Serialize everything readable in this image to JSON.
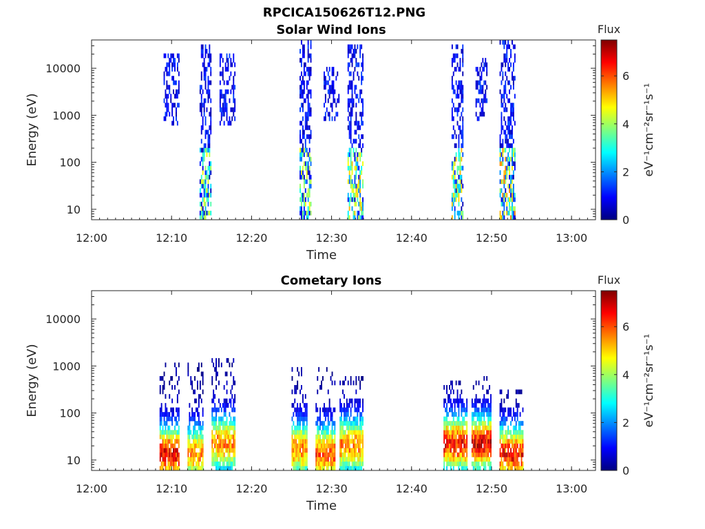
{
  "figure_title": "RPCICA150626T12.PNG",
  "colorbar_stops": [
    "#00007f",
    "#0000ff",
    "#007fff",
    "#00ffff",
    "#7fff7f",
    "#ffff00",
    "#ff7f00",
    "#ff0000",
    "#7f0000"
  ],
  "chart_data": [
    {
      "type": "heatmap",
      "title": "Solar Wind Ions",
      "xlabel": "Time",
      "ylabel": "Energy (eV)",
      "x_ticks": [
        "12:00",
        "12:10",
        "12:20",
        "12:30",
        "12:40",
        "12:50",
        "13:00"
      ],
      "x_range": [
        "12:00",
        "13:03"
      ],
      "y_scale": "log",
      "y_ticks": [
        "10",
        "100",
        "1000",
        "10000"
      ],
      "y_range": [
        6,
        40000
      ],
      "colorbar": {
        "label": "Flux",
        "unit": "eV⁻¹cm⁻²sr⁻¹s⁻¹",
        "ticks": [
          "0",
          "2",
          "4",
          "6"
        ],
        "range": [
          0,
          7.5
        ]
      },
      "bursts": [
        {
          "t_start": "12:09",
          "t_end": "12:11",
          "e_min": 600,
          "e_max": 18000,
          "flux": [
            1.5,
            2.5
          ]
        },
        {
          "t_start": "12:13:30",
          "t_end": "12:15",
          "e_min": 6,
          "e_max": 30000,
          "flux": [
            0.3,
            3.5
          ]
        },
        {
          "t_start": "12:16",
          "t_end": "12:18",
          "e_min": 600,
          "e_max": 18000,
          "flux": [
            1.5,
            2.5
          ]
        },
        {
          "t_start": "12:26",
          "t_end": "12:27:30",
          "e_min": 6,
          "e_max": 35000,
          "flux": [
            0.3,
            3.5
          ]
        },
        {
          "t_start": "12:29",
          "t_end": "12:31",
          "e_min": 700,
          "e_max": 9000,
          "flux": [
            1.5,
            2.5
          ]
        },
        {
          "t_start": "12:32",
          "t_end": "12:34",
          "e_min": 6,
          "e_max": 30000,
          "flux": [
            0.3,
            4
          ]
        },
        {
          "t_start": "12:45",
          "t_end": "12:46:30",
          "e_min": 6,
          "e_max": 30000,
          "flux": [
            0.3,
            4
          ]
        },
        {
          "t_start": "12:48",
          "t_end": "12:49:30",
          "e_min": 700,
          "e_max": 15000,
          "flux": [
            1.5,
            2.5
          ]
        },
        {
          "t_start": "12:51",
          "t_end": "12:53",
          "e_min": 6,
          "e_max": 35000,
          "flux": [
            0.3,
            4.5
          ]
        }
      ]
    },
    {
      "type": "heatmap",
      "title": "Cometary Ions",
      "xlabel": "Time",
      "ylabel": "Energy (eV)",
      "x_ticks": [
        "12:00",
        "12:10",
        "12:20",
        "12:30",
        "12:40",
        "12:50",
        "13:00"
      ],
      "x_range": [
        "12:00",
        "13:03"
      ],
      "y_scale": "log",
      "y_ticks": [
        "10",
        "100",
        "1000",
        "10000"
      ],
      "y_range": [
        6,
        40000
      ],
      "colorbar": {
        "label": "Flux",
        "unit": "eV⁻¹cm⁻²sr⁻¹s⁻¹",
        "ticks": [
          "0",
          "2",
          "4",
          "6"
        ],
        "range": [
          0,
          7.5
        ]
      },
      "bursts": [
        {
          "t_start": "12:08:30",
          "t_end": "12:11",
          "e_min": 6,
          "e_max": 1000,
          "peak_e": 12,
          "peak_flux": 7.2
        },
        {
          "t_start": "12:12",
          "t_end": "12:14",
          "e_min": 6,
          "e_max": 1200,
          "peak_e": 12,
          "peak_flux": 6
        },
        {
          "t_start": "12:15",
          "t_end": "12:18",
          "e_min": 6,
          "e_max": 1200,
          "peak_e": 20,
          "peak_flux": 6
        },
        {
          "t_start": "12:25",
          "t_end": "12:27",
          "e_min": 6,
          "e_max": 800,
          "peak_e": 15,
          "peak_flux": 6
        },
        {
          "t_start": "12:28",
          "t_end": "12:30:30",
          "e_min": 6,
          "e_max": 900,
          "peak_e": 12,
          "peak_flux": 6.5
        },
        {
          "t_start": "12:31",
          "t_end": "12:34",
          "e_min": 6,
          "e_max": 500,
          "peak_e": 18,
          "peak_flux": 6
        },
        {
          "t_start": "12:44",
          "t_end": "12:47",
          "e_min": 6,
          "e_max": 400,
          "peak_e": 20,
          "peak_flux": 7
        },
        {
          "t_start": "12:47:30",
          "t_end": "12:50",
          "e_min": 6,
          "e_max": 600,
          "peak_e": 20,
          "peak_flux": 7.3
        },
        {
          "t_start": "12:51",
          "t_end": "12:54",
          "e_min": 6,
          "e_max": 300,
          "peak_e": 12,
          "peak_flux": 7
        }
      ]
    }
  ]
}
